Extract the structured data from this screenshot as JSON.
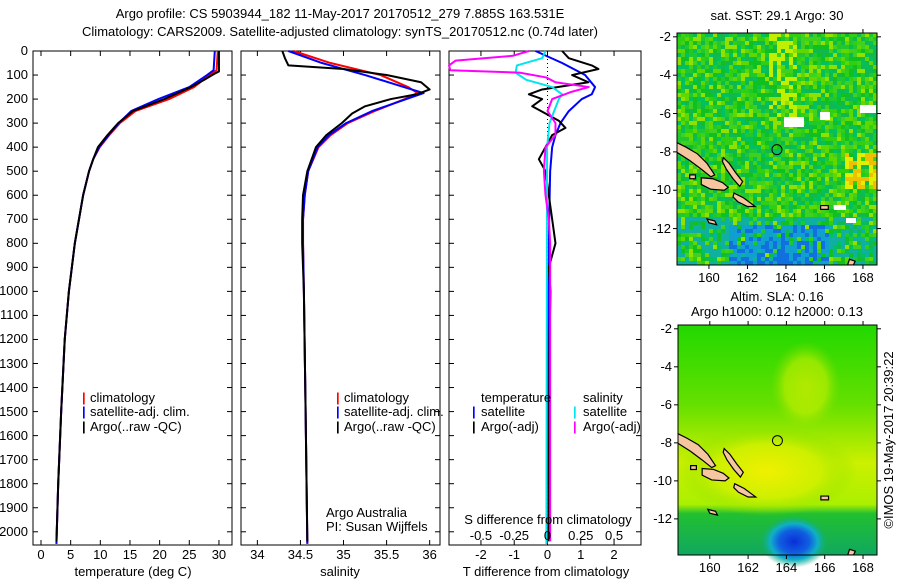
{
  "header": {
    "line1": "Argo profile: CS 5903944_182 11-May-2017 20170512_279 7.885S 163.531E",
    "line2": "Climatology: CARS2009. Satellite-adjusted climatology: synTS_20170512.nc (0.74d later)"
  },
  "depth_axis": {
    "ticks": [
      0,
      100,
      200,
      300,
      400,
      500,
      600,
      700,
      800,
      900,
      1000,
      1100,
      1200,
      1300,
      1400,
      1500,
      1600,
      1700,
      1800,
      1900,
      2000
    ],
    "range": [
      0,
      2055
    ]
  },
  "credit": {
    "line1": "Argo Australia",
    "line2": "PI: Susan Wijffels"
  },
  "watermark": "©IMOS 19-May-2017 20:39:22",
  "colors": {
    "climatology": "#ff0000",
    "satellite": "#0000ff",
    "argo": "#000000",
    "sal_satellite": "#00e5ee",
    "sal_argo": "#ff00ff"
  },
  "chart_data": [
    {
      "type": "line",
      "xlabel": "temperature (deg C)",
      "xlim": [
        -1.35,
        32.2
      ],
      "xticks": [
        0,
        5,
        10,
        15,
        20,
        25,
        30
      ],
      "ylabel": "depth",
      "ylim": [
        2055,
        0
      ],
      "legend": [
        "climatology",
        "satellite-adj. clim.",
        "Argo(..raw -QC)"
      ],
      "legend_position": "lower-middle",
      "series": [
        {
          "name": "climatology",
          "color": "#ff0000",
          "depth": [
            0,
            80,
            100,
            150,
            200,
            250,
            300,
            350,
            400,
            450,
            500,
            600,
            700,
            800,
            900,
            1000,
            1200,
            1500,
            1800,
            2050
          ],
          "values": [
            29.8,
            29.6,
            28.4,
            25.8,
            21.6,
            15.9,
            13.3,
            11.5,
            9.9,
            8.8,
            8.1,
            7.1,
            6.4,
            5.7,
            5.2,
            4.7,
            4.0,
            3.4,
            2.9,
            2.6
          ]
        },
        {
          "name": "satellite-adj. clim.",
          "color": "#0000ff",
          "depth": [
            0,
            80,
            100,
            150,
            200,
            250,
            300,
            350,
            400,
            450,
            500,
            600,
            700,
            800,
            900,
            1000,
            1200,
            1500,
            1800,
            2050
          ],
          "values": [
            29.3,
            29.1,
            28.0,
            25.0,
            19.8,
            15.2,
            13.1,
            11.4,
            9.8,
            8.8,
            8.1,
            7.1,
            6.4,
            5.7,
            5.2,
            4.7,
            4.0,
            3.4,
            2.9,
            2.6
          ]
        },
        {
          "name": "Argo(..raw -QC)",
          "color": "#000000",
          "depth": [
            0,
            60,
            85,
            95,
            120,
            150,
            200,
            250,
            300,
            350,
            400,
            450,
            500,
            600,
            700,
            800,
            900,
            1000,
            1200,
            1500,
            1800,
            2040
          ],
          "values": [
            30.0,
            30.0,
            30.0,
            29.2,
            27.5,
            25.3,
            20.8,
            15.5,
            13.0,
            11.2,
            9.6,
            8.8,
            8.1,
            7.1,
            6.4,
            5.7,
            5.2,
            4.7,
            4.0,
            3.4,
            2.9,
            2.6
          ]
        }
      ]
    },
    {
      "type": "line",
      "xlabel": "salinity",
      "xlim": [
        33.81,
        36.12
      ],
      "xticks": [
        34,
        34.5,
        35,
        35.5,
        36
      ],
      "ylim": [
        2055,
        0
      ],
      "legend": [
        "climatology",
        "satellite-adj. clim.",
        "Argo(..raw -QC)"
      ],
      "legend_position": "lower-right",
      "series": [
        {
          "name": "climatology",
          "color": "#ff0000",
          "depth": [
            0,
            50,
            100,
            150,
            175,
            200,
            250,
            300,
            350,
            400,
            500,
            600,
            700,
            800,
            1000,
            1500,
            2050
          ],
          "values": [
            34.42,
            34.85,
            35.43,
            35.75,
            35.86,
            35.71,
            35.36,
            35.05,
            34.85,
            34.71,
            34.59,
            34.55,
            34.53,
            34.53,
            34.54,
            34.56,
            34.58
          ]
        },
        {
          "name": "satellite-adj. clim.",
          "color": "#0000ff",
          "depth": [
            0,
            50,
            100,
            150,
            175,
            200,
            250,
            300,
            350,
            400,
            500,
            600,
            700,
            800,
            1000,
            1500,
            2050
          ],
          "values": [
            34.36,
            34.75,
            35.25,
            35.7,
            35.93,
            35.73,
            35.33,
            35.03,
            34.83,
            34.7,
            34.59,
            34.55,
            34.53,
            34.53,
            34.54,
            34.56,
            34.58
          ]
        },
        {
          "name": "Argo(..raw -QC)",
          "color": "#000000",
          "depth": [
            0,
            30,
            60,
            75,
            100,
            130,
            160,
            180,
            200,
            230,
            260,
            300,
            350,
            400,
            500,
            600,
            700,
            800,
            1000,
            1500,
            2040
          ],
          "values": [
            34.29,
            34.32,
            34.36,
            35.0,
            35.5,
            35.9,
            36.0,
            35.85,
            35.55,
            35.25,
            35.1,
            34.98,
            34.8,
            34.68,
            34.58,
            34.53,
            34.52,
            34.52,
            34.54,
            34.56,
            34.58
          ]
        }
      ]
    },
    {
      "type": "line",
      "xlabel": "T difference from climatology",
      "xlim": [
        -2.96,
        2.81
      ],
      "xticks": [
        -2,
        -1,
        0,
        1,
        2
      ],
      "x2label": "S difference from climatology",
      "x2ticks": [
        -0.5,
        -0.25,
        0,
        0.25,
        0.5
      ],
      "x2ticklabels": [
        "-0.5",
        "-0.25",
        "0",
        "0.25",
        "0.5"
      ],
      "ylim": [
        2055,
        0
      ],
      "legend_titles": [
        "temperature",
        "salinity"
      ],
      "legend": [
        "satellite",
        "Argo(-adj)",
        "satellite",
        "Argo(-adj)"
      ],
      "legend_position": "lower-middle",
      "series": [
        {
          "name": "temperature satellite",
          "color": "#0000ff",
          "scale": "T",
          "depth": [
            0,
            50,
            100,
            150,
            180,
            200,
            250,
            300,
            350,
            400,
            500,
            700,
            1000,
            1500,
            2050
          ],
          "values": [
            -0.36,
            0.44,
            1.13,
            1.43,
            1.33,
            1.03,
            0.64,
            0.39,
            0.24,
            0.14,
            0.08,
            0.05,
            0.03,
            0.0,
            -0.03
          ]
        },
        {
          "name": "temperature Argo(-adj)",
          "color": "#000000",
          "scale": "T",
          "depth": [
            0,
            30,
            60,
            75,
            100,
            130,
            160,
            180,
            200,
            230,
            260,
            290,
            320,
            350,
            400,
            450,
            500,
            600,
            700,
            800,
            900,
            1000,
            1200,
            1500,
            1800,
            2040
          ],
          "values": [
            0.44,
            0.64,
            1.33,
            1.53,
            0.74,
            1.23,
            -0.16,
            -0.56,
            -0.16,
            -0.46,
            -0.06,
            0.34,
            0.54,
            0.14,
            -0.06,
            -0.26,
            -0.06,
            0.04,
            0.14,
            0.24,
            0.04,
            0.09,
            0.06,
            0.05,
            0.04,
            0.03
          ]
        },
        {
          "name": "salinity satellite",
          "color": "#00e5ee",
          "scale": "S",
          "depth": [
            0,
            30,
            60,
            90,
            120,
            150,
            180,
            200,
            250,
            300,
            400,
            1000,
            2050
          ],
          "values": [
            -0.015,
            -0.04,
            -0.23,
            -0.24,
            -0.16,
            0.035,
            0.11,
            0.085,
            0.05,
            0.015,
            -0.003,
            -0.005,
            -0.008
          ]
        },
        {
          "name": "salinity Argo(-adj)",
          "color": "#ff00ff",
          "scale": "S",
          "depth": [
            0,
            20,
            40,
            60,
            80,
            90,
            110,
            130,
            150,
            170,
            200,
            250,
            300,
            350,
            400,
            500,
            600,
            700,
            800,
            1000,
            1500,
            2040
          ],
          "values": [
            -0.14,
            -0.26,
            -0.69,
            -0.74,
            -0.73,
            -0.21,
            -0.01,
            0.06,
            0.31,
            0.18,
            0.035,
            0.0,
            0.06,
            0.06,
            -0.015,
            -0.027,
            -0.015,
            0.01,
            0.02,
            0.02,
            0.02,
            0.02
          ]
        }
      ]
    },
    {
      "type": "heatmap",
      "title": "sat. SST: 29.1 Argo: 30",
      "xlim": [
        158.34,
        168.73
      ],
      "ylim": [
        -13.9,
        -1.8
      ],
      "xticks": [
        160,
        162,
        164,
        166,
        168
      ],
      "yticks": [
        -2,
        -4,
        -6,
        -8,
        -10,
        -12
      ],
      "argo_location": {
        "lon": 163.531,
        "lat": -7.885
      }
    },
    {
      "type": "heatmap",
      "title": "Altim. SLA: 0.16",
      "subtitle": "Argo h1000: 0.12 h2000: 0.13",
      "xlim": [
        158.34,
        168.73
      ],
      "ylim": [
        -13.9,
        -1.8
      ],
      "xticks": [
        160,
        162,
        164,
        166,
        168
      ],
      "yticks": [
        -2,
        -4,
        -6,
        -8,
        -10,
        -12
      ],
      "argo_location": {
        "lon": 163.531,
        "lat": -7.885
      }
    }
  ]
}
